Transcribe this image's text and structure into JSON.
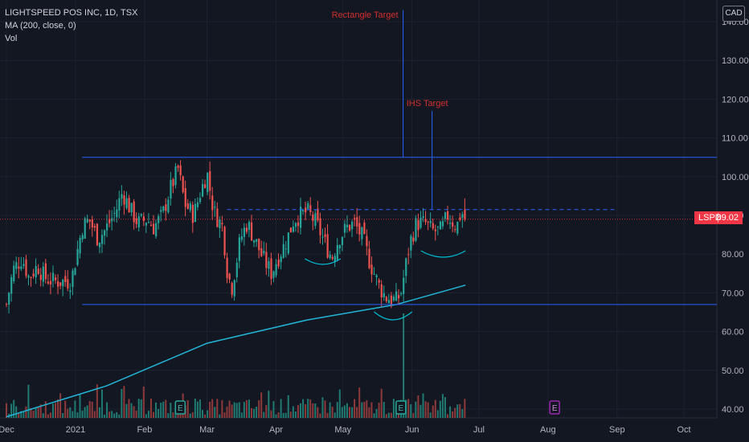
{
  "legend": {
    "title": "LIGHTSPEED POS INC, 1D, TSX",
    "ma": "MA (200, close, 0)",
    "vol": "Vol"
  },
  "currency_label": "CAD",
  "price_tag": {
    "symbol": "LSPD",
    "value": "89.02"
  },
  "colors": {
    "background": "#131722",
    "up": "#26a69a",
    "down": "#ef5350",
    "vol_up": "#1f7a72",
    "vol_down": "#8e3a3a",
    "annotation": "#2962ff",
    "ma": "#22b5d8",
    "target_text": "#d32f2f",
    "last_price": "#f23645"
  },
  "chart_data": {
    "type": "candlestick",
    "title": "LIGHTSPEED POS INC, 1D, TSX",
    "y_axis": {
      "min": 38,
      "max": 143,
      "ticks": [
        40,
        50,
        60,
        70,
        80,
        90,
        100,
        110,
        120,
        130,
        140
      ],
      "labels": [
        "40.00",
        "50.00",
        "60.00",
        "70.00",
        "80.00",
        "90.00",
        "100.00",
        "110.00",
        "120.00",
        "130.00",
        "140.00"
      ]
    },
    "x_axis_labels": [
      "Dec",
      "2021",
      "Feb",
      "Mar",
      "Apr",
      "May",
      "Jun",
      "Jul",
      "Aug",
      "Sep",
      "Oct"
    ],
    "close_path": [
      [
        "2020-12-01",
        67
      ],
      [
        "2020-12-04",
        76
      ],
      [
        "2020-12-08",
        79
      ],
      [
        "2020-12-11",
        74
      ],
      [
        "2020-12-15",
        77
      ],
      [
        "2020-12-18",
        74
      ],
      [
        "2020-12-22",
        73
      ],
      [
        "2020-12-30",
        73
      ],
      [
        "2021-01-04",
        87
      ],
      [
        "2021-01-07",
        89
      ],
      [
        "2021-01-11",
        84
      ],
      [
        "2021-01-14",
        86
      ],
      [
        "2021-01-19",
        91
      ],
      [
        "2021-01-22",
        96
      ],
      [
        "2021-01-26",
        91
      ],
      [
        "2021-01-29",
        88
      ],
      [
        "2021-02-02",
        89
      ],
      [
        "2021-02-05",
        87
      ],
      [
        "2021-02-09",
        90
      ],
      [
        "2021-02-12",
        96
      ],
      [
        "2021-02-16",
        102
      ],
      [
        "2021-02-19",
        93
      ],
      [
        "2021-02-23",
        90
      ],
      [
        "2021-02-26",
        96
      ],
      [
        "2021-03-01",
        101
      ],
      [
        "2021-03-04",
        91
      ],
      [
        "2021-03-08",
        87
      ],
      [
        "2021-03-10",
        76
      ],
      [
        "2021-03-12",
        71
      ],
      [
        "2021-03-16",
        84
      ],
      [
        "2021-03-19",
        88
      ],
      [
        "2021-03-23",
        83
      ],
      [
        "2021-03-26",
        79
      ],
      [
        "2021-03-30",
        75
      ],
      [
        "2021-04-01",
        78
      ],
      [
        "2021-04-06",
        84
      ],
      [
        "2021-04-09",
        89
      ],
      [
        "2021-04-12",
        90
      ],
      [
        "2021-04-15",
        91
      ],
      [
        "2021-04-19",
        88
      ],
      [
        "2021-04-22",
        84
      ],
      [
        "2021-04-26",
        79
      ],
      [
        "2021-04-29",
        84
      ],
      [
        "2021-05-03",
        87
      ],
      [
        "2021-05-06",
        88
      ],
      [
        "2021-05-10",
        84
      ],
      [
        "2021-05-13",
        78
      ],
      [
        "2021-05-17",
        72
      ],
      [
        "2021-05-20",
        69
      ],
      [
        "2021-05-25",
        68
      ],
      [
        "2021-05-27",
        70
      ],
      [
        "2021-05-31",
        83
      ],
      [
        "2021-06-03",
        88
      ],
      [
        "2021-06-07",
        88
      ],
      [
        "2021-06-10",
        86
      ],
      [
        "2021-06-14",
        86
      ],
      [
        "2021-06-17",
        90
      ],
      [
        "2021-06-21",
        87
      ],
      [
        "2021-06-23",
        91
      ],
      [
        "2021-06-25",
        89.02
      ]
    ],
    "ma_path": [
      [
        "2020-12-01",
        38
      ],
      [
        "2021-01-15",
        46
      ],
      [
        "2021-03-01",
        57
      ],
      [
        "2021-04-15",
        63
      ],
      [
        "2021-05-25",
        67
      ],
      [
        "2021-06-25",
        72
      ]
    ],
    "last_price": 89.02,
    "annotations": {
      "rectangle_top": 105,
      "rectangle_bottom": 67,
      "neckline": 91.5,
      "rectangle_target_label": "Rectangle Target",
      "rectangle_target_value": 143,
      "ihs_target_label": "IHS Target",
      "ihs_target_value": 117
    },
    "volume_spike_date": "2021-05-28",
    "earnings_markers": [
      {
        "date": "2021-02-17",
        "label": "E"
      },
      {
        "date": "2021-05-27",
        "label": "E"
      },
      {
        "date": "2021-08-04",
        "label": "E"
      }
    ],
    "grid": true,
    "legend_position": "top-left"
  }
}
